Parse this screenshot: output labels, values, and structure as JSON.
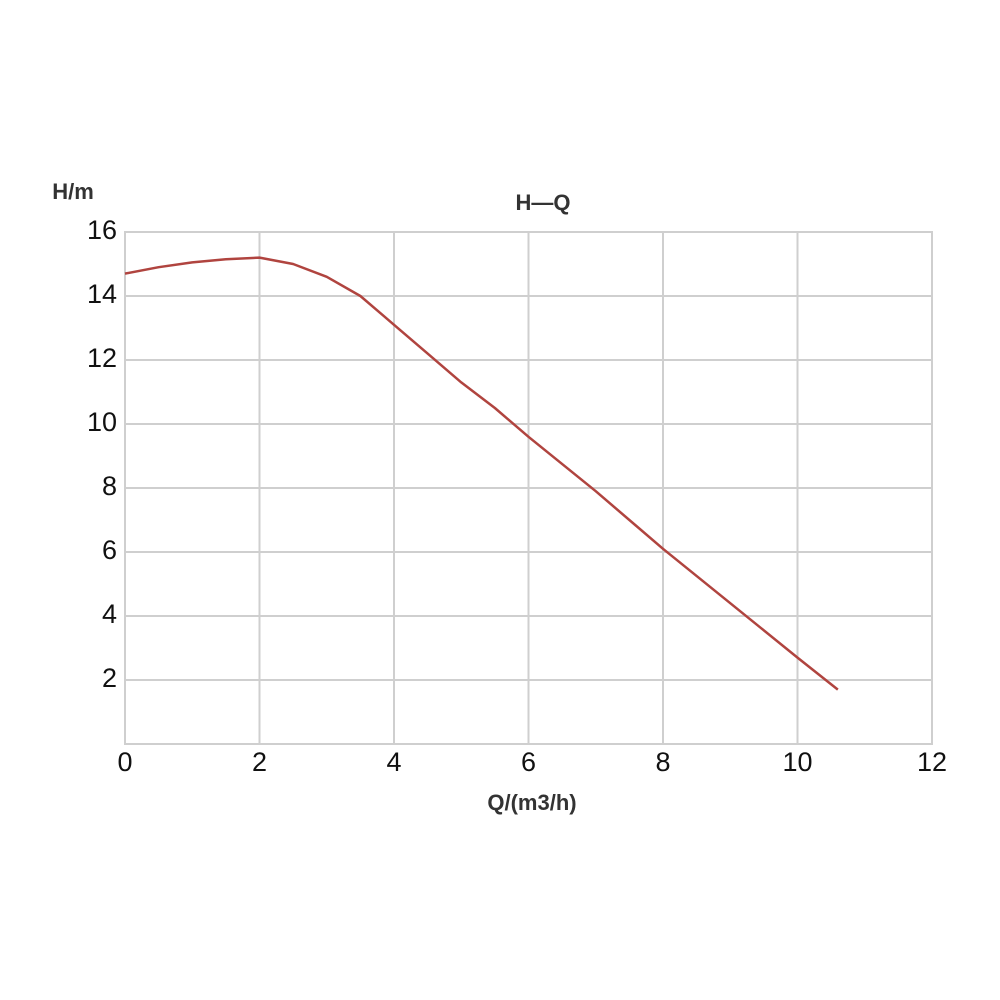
{
  "chart_data": {
    "type": "line",
    "title": "H—Q",
    "x_label": "Q/(m3/h)",
    "y_label": "H/m",
    "x": [
      0,
      0.5,
      1,
      1.5,
      2,
      2.5,
      3,
      3.5,
      4,
      4.5,
      5,
      5.5,
      6,
      7,
      8,
      9,
      10,
      10.6
    ],
    "series": [
      {
        "name": "H",
        "color": "#b0443f",
        "values": [
          14.7,
          14.9,
          15.05,
          15.15,
          15.2,
          15.0,
          14.6,
          14.0,
          13.1,
          12.2,
          11.3,
          10.5,
          9.6,
          7.9,
          6.1,
          4.4,
          2.7,
          1.7
        ]
      }
    ],
    "xlim": [
      0,
      12
    ],
    "xticks": [
      0,
      2,
      4,
      6,
      8,
      10,
      12
    ],
    "ylim": [
      0,
      16
    ],
    "yticks": [
      2,
      4,
      6,
      8,
      10,
      12,
      14,
      16
    ],
    "grid": true
  }
}
